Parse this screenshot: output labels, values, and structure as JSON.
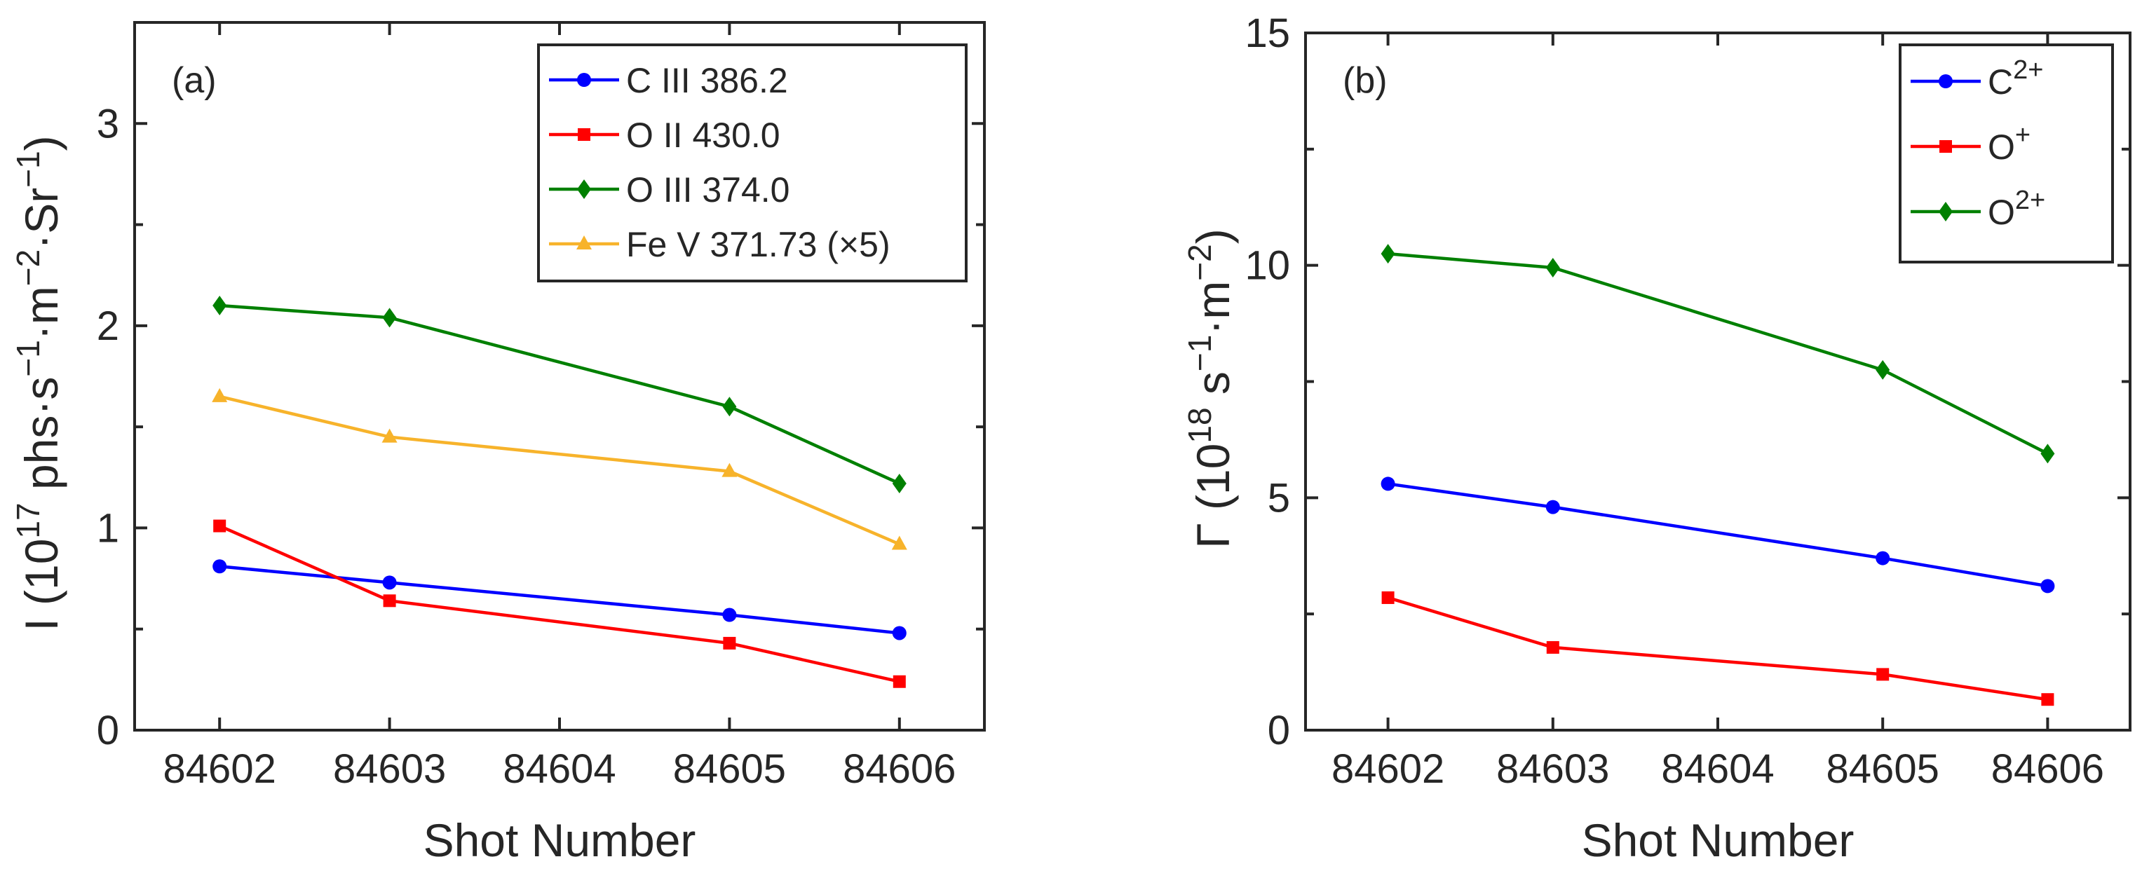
{
  "chart_data": [
    {
      "panel_label": "(a)",
      "type": "line",
      "x": [
        84602,
        84603,
        84605,
        84606
      ],
      "xticks": [
        "84602",
        "84603",
        "84604",
        "84605",
        "84606"
      ],
      "xlabel": "Shot Number",
      "ylabel_main": "I  (10",
      "ylabel_exp1": "17",
      "ylabel_mid": " phs·s",
      "ylabel_exp2": "−1",
      "ylabel_mid2": "·m",
      "ylabel_exp3": "−2",
      "ylabel_mid3": "·Sr",
      "ylabel_exp4": "−1",
      "ylabel_end": ")",
      "xlim": [
        84601.5,
        84606.5
      ],
      "ylim": [
        0,
        3.5
      ],
      "yticks": [
        "0",
        "1",
        "2",
        "3"
      ],
      "legend_position": "top-right",
      "series": [
        {
          "name": "C III 386.2",
          "color": "#0000ff",
          "marker": "circle",
          "values": [
            0.81,
            0.73,
            0.57,
            0.48
          ]
        },
        {
          "name": "O II 430.0",
          "color": "#ff0000",
          "marker": "square",
          "values": [
            1.01,
            0.64,
            0.43,
            0.24
          ]
        },
        {
          "name": "O III 374.0",
          "color": "#008000",
          "marker": "diamond",
          "values": [
            2.1,
            2.04,
            1.6,
            1.22
          ]
        },
        {
          "name": "Fe V 371.73 (×5)",
          "color": "#f7b32b",
          "marker": "triangle",
          "values": [
            1.65,
            1.45,
            1.28,
            0.92
          ]
        }
      ]
    },
    {
      "panel_label": "(b)",
      "type": "line",
      "x": [
        84602,
        84603,
        84605,
        84606
      ],
      "xticks": [
        "84602",
        "84603",
        "84604",
        "84605",
        "84606"
      ],
      "xlabel": "Shot Number",
      "ylabel_main": "Γ  (10",
      "ylabel_exp1": "18",
      "ylabel_mid": " s",
      "ylabel_exp2": "−1",
      "ylabel_mid2": "·m",
      "ylabel_exp3": "−2",
      "ylabel_end": ")",
      "xlim": [
        84601.5,
        84606.5
      ],
      "ylim": [
        0,
        15
      ],
      "yticks": [
        "0",
        "5",
        "10",
        "15"
      ],
      "legend_position": "top-right",
      "series": [
        {
          "name": "C",
          "sup": "2+",
          "color": "#0000ff",
          "marker": "circle",
          "values": [
            5.3,
            4.8,
            3.7,
            3.1
          ]
        },
        {
          "name": "O",
          "sup": "+",
          "color": "#ff0000",
          "marker": "square",
          "values": [
            2.85,
            1.78,
            1.2,
            0.66
          ]
        },
        {
          "name": "O",
          "sup": "2+",
          "color": "#008000",
          "marker": "diamond",
          "values": [
            10.25,
            9.95,
            7.75,
            5.95
          ]
        }
      ]
    }
  ]
}
